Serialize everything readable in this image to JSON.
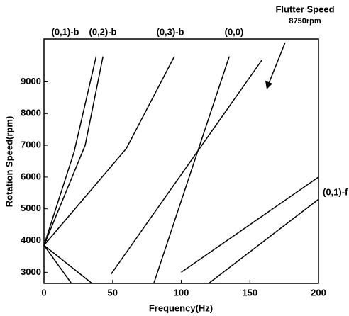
{
  "chart_data": {
    "type": "line",
    "xlabel": "Frequency(Hz)",
    "ylabel": "Rotation Speed(rpm)",
    "xlim": [
      0,
      200
    ],
    "xticks": [
      0,
      50,
      100,
      150,
      200
    ],
    "ylim": [
      2650,
      10350
    ],
    "yticks": [
      3000,
      4000,
      5000,
      6000,
      7000,
      8000,
      9000
    ],
    "series": [
      {
        "color": "#000000",
        "x": [
          20,
          0,
          22,
          38
        ],
        "values": [
          2650,
          3850,
          6800,
          9800
        ]
      },
      {
        "color": "#000000",
        "x": [
          35,
          0,
          30,
          43
        ],
        "values": [
          2650,
          3850,
          7000,
          9800
        ]
      },
      {
        "color": "#000000",
        "x": [
          0,
          60,
          95
        ],
        "values": [
          3850,
          6900,
          9800
        ]
      },
      {
        "color": "#000000",
        "x": [
          49,
          159
        ],
        "values": [
          2950,
          9700
        ]
      },
      {
        "color": "#000000",
        "x": [
          80,
          135
        ],
        "values": [
          2650,
          9800
        ]
      },
      {
        "color": "#000000",
        "x": [
          100,
          200
        ],
        "values": [
          3000,
          6000
        ]
      },
      {
        "color": "#000000",
        "x": [
          120,
          200
        ],
        "values": [
          2650,
          5300
        ]
      }
    ],
    "annotations": [
      "(0,1)-b",
      "(0,2)-b",
      "(0,3)-b",
      "(0,0)",
      "(0,1)-f",
      "Flutter Speed",
      "8750rpm"
    ]
  }
}
